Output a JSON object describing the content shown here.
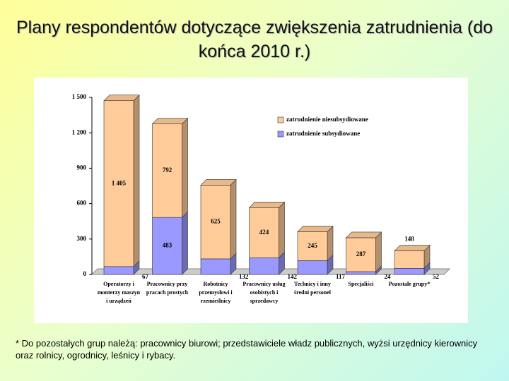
{
  "chart_data": {
    "type": "stacked_bar",
    "title": "Plany respondentów dotyczące zwiększenia zatrudnienia (do końca 2010 r.)",
    "categories": [
      "Operatorzy i monterzy maszyn i urządzeń",
      "Pracownicy przy pracach prostych",
      "Robotnicy przemysłowi i rzemieślnicy",
      "Pracownicy usług osobistych i sprzedawcy",
      "Technicy i inny średni personel",
      "Specjaliści",
      "Pozostałe grupy*"
    ],
    "series": [
      {
        "name": "zatrudnienie subsydiowane",
        "color": "#9999ff",
        "values": [
          67,
          483,
          132,
          142,
          117,
          24,
          52
        ]
      },
      {
        "name": "zatrudnienie niesubsydiowane",
        "color": "#ffcc99",
        "values": [
          1405,
          792,
          625,
          424,
          245,
          287,
          148
        ],
        "value_labels": [
          "1 405",
          "792",
          "625",
          "424",
          "245",
          "287",
          "148"
        ]
      }
    ],
    "ylim": [
      0,
      1500
    ],
    "yticks": [
      0,
      300,
      600,
      900,
      {
        "value": 1200,
        "label": "1 200"
      },
      {
        "value": 1500,
        "label": "1 500"
      }
    ],
    "legend": "upper right",
    "footnote": "* Do pozostałych grup należą: pracownicy biurowi; przedstawiciele władz publicznych, wyżsi urzędnicy kierownicy oraz rolnicy, ogrodnicy, leśnicy i rybacy."
  }
}
